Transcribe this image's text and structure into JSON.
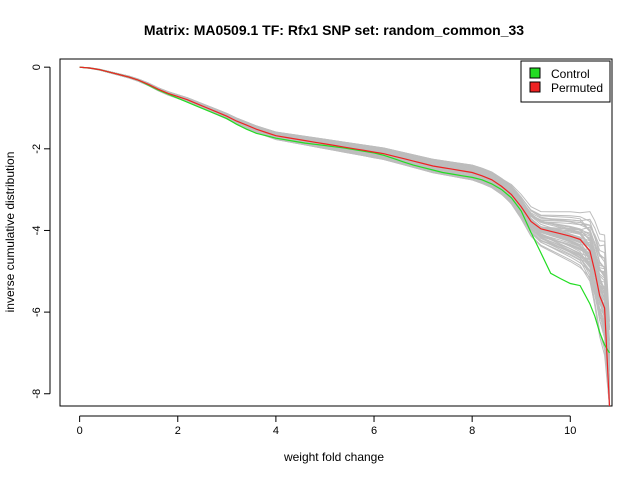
{
  "chart_data": {
    "type": "line",
    "title": "Matrix: MA0509.1 TF: Rfx1 SNP set: random_common_33",
    "xlabel": "weight fold change",
    "ylabel": "inverse cumulative distribution",
    "xlim": [
      -0.4,
      10.85
    ],
    "ylim": [
      -8.3,
      0.2
    ],
    "xticks": [
      0,
      2,
      4,
      6,
      8,
      10
    ],
    "yticks": [
      0,
      -2,
      -4,
      -6,
      -8
    ],
    "grid": false,
    "legend": {
      "position": "top-right",
      "entries": [
        {
          "label": "Control",
          "color": "#22dd22"
        },
        {
          "label": "Permuted",
          "color": "#ee2222"
        }
      ]
    },
    "background_series": {
      "description": "many grey permutation curves",
      "color": "#bdbdbd",
      "count": 60
    },
    "series": [
      {
        "name": "Control",
        "color": "#22dd22",
        "x": [
          0,
          0.2,
          0.4,
          0.6,
          0.8,
          1.0,
          1.2,
          1.4,
          1.6,
          1.8,
          2.0,
          2.2,
          2.4,
          2.6,
          2.8,
          3.0,
          3.2,
          3.4,
          3.6,
          3.8,
          4.0,
          4.2,
          4.4,
          4.6,
          4.8,
          5.0,
          5.2,
          5.4,
          5.6,
          5.8,
          6.0,
          6.2,
          6.4,
          6.6,
          6.8,
          7.0,
          7.2,
          7.4,
          7.6,
          7.8,
          8.0,
          8.2,
          8.4,
          8.6,
          8.8,
          9.0,
          9.2,
          9.4,
          9.6,
          9.8,
          10.0,
          10.2,
          10.4,
          10.5,
          10.6,
          10.7,
          10.8
        ],
        "y": [
          0,
          -0.02,
          -0.06,
          -0.12,
          -0.18,
          -0.24,
          -0.32,
          -0.44,
          -0.56,
          -0.66,
          -0.76,
          -0.86,
          -0.96,
          -1.06,
          -1.16,
          -1.26,
          -1.4,
          -1.52,
          -1.62,
          -1.68,
          -1.74,
          -1.78,
          -1.82,
          -1.86,
          -1.89,
          -1.92,
          -1.95,
          -1.98,
          -2.02,
          -2.06,
          -2.1,
          -2.16,
          -2.24,
          -2.32,
          -2.4,
          -2.46,
          -2.52,
          -2.58,
          -2.62,
          -2.66,
          -2.7,
          -2.76,
          -2.86,
          -3.0,
          -3.2,
          -3.52,
          -4.05,
          -4.55,
          -5.05,
          -5.18,
          -5.3,
          -5.35,
          -5.8,
          -6.1,
          -6.5,
          -6.8,
          -7.0
        ]
      },
      {
        "name": "Permuted",
        "color": "#ee2222",
        "x": [
          0,
          0.2,
          0.4,
          0.6,
          0.8,
          1.0,
          1.2,
          1.4,
          1.6,
          1.8,
          2.0,
          2.2,
          2.4,
          2.6,
          2.8,
          3.0,
          3.2,
          3.4,
          3.6,
          3.8,
          4.0,
          4.2,
          4.4,
          4.6,
          4.8,
          5.0,
          5.2,
          5.4,
          5.6,
          5.8,
          6.0,
          6.2,
          6.4,
          6.6,
          6.8,
          7.0,
          7.2,
          7.4,
          7.6,
          7.8,
          8.0,
          8.2,
          8.4,
          8.6,
          8.8,
          9.0,
          9.2,
          9.4,
          9.6,
          9.8,
          10.0,
          10.2,
          10.4,
          10.5,
          10.6,
          10.7,
          10.8
        ],
        "y": [
          0,
          -0.02,
          -0.06,
          -0.12,
          -0.18,
          -0.24,
          -0.32,
          -0.42,
          -0.54,
          -0.64,
          -0.72,
          -0.8,
          -0.9,
          -1.0,
          -1.1,
          -1.2,
          -1.32,
          -1.42,
          -1.52,
          -1.6,
          -1.68,
          -1.72,
          -1.76,
          -1.8,
          -1.84,
          -1.88,
          -1.92,
          -1.96,
          -2.0,
          -2.04,
          -2.08,
          -2.12,
          -2.18,
          -2.24,
          -2.3,
          -2.36,
          -2.42,
          -2.46,
          -2.5,
          -2.54,
          -2.58,
          -2.66,
          -2.76,
          -2.92,
          -3.12,
          -3.42,
          -3.78,
          -3.96,
          -4.02,
          -4.08,
          -4.14,
          -4.22,
          -4.5,
          -5.0,
          -5.6,
          -5.9,
          -8.3
        ]
      }
    ]
  }
}
